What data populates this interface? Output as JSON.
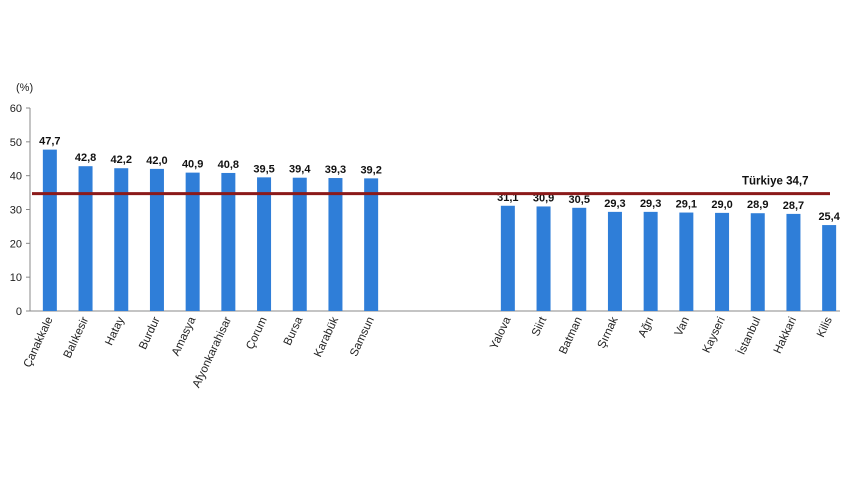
{
  "chart_data": {
    "type": "bar",
    "unit_label": "(%)",
    "ylim": [
      0,
      60
    ],
    "yticks": [
      0,
      10,
      20,
      30,
      40,
      50,
      60
    ],
    "grid": false,
    "colors": {
      "bar": "#2f7ed8",
      "reference_line": "#8b1a1a",
      "axis": "#888888"
    },
    "groups": [
      {
        "categories": [
          "Çanakkale",
          "Balıkesir",
          "Hatay",
          "Burdur",
          "Amasya",
          "Afyonkarahisar",
          "Çorum",
          "Bursa",
          "Karabük",
          "Samsun"
        ],
        "values": [
          47.7,
          42.8,
          42.2,
          42.0,
          40.9,
          40.8,
          39.5,
          39.4,
          39.3,
          39.2
        ],
        "value_labels": [
          "47,7",
          "42,8",
          "42,2",
          "42,0",
          "40,9",
          "40,8",
          "39,5",
          "39,4",
          "39,3",
          "39,2"
        ]
      },
      {
        "categories": [
          "Yalova",
          "Siirt",
          "Batman",
          "Şırnak",
          "Ağrı",
          "Van",
          "Kayseri",
          "İstanbul",
          "Hakkari",
          "Kilis"
        ],
        "values": [
          31.1,
          30.9,
          30.5,
          29.3,
          29.3,
          29.1,
          29.0,
          28.9,
          28.7,
          25.4
        ],
        "value_labels": [
          "31,1",
          "30,9",
          "30,5",
          "29,3",
          "29,3",
          "29,1",
          "29,0",
          "28,9",
          "28,7",
          "25,4"
        ]
      }
    ],
    "reference": {
      "name": "Türkiye",
      "value": 34.7,
      "value_label": "34,7"
    }
  }
}
